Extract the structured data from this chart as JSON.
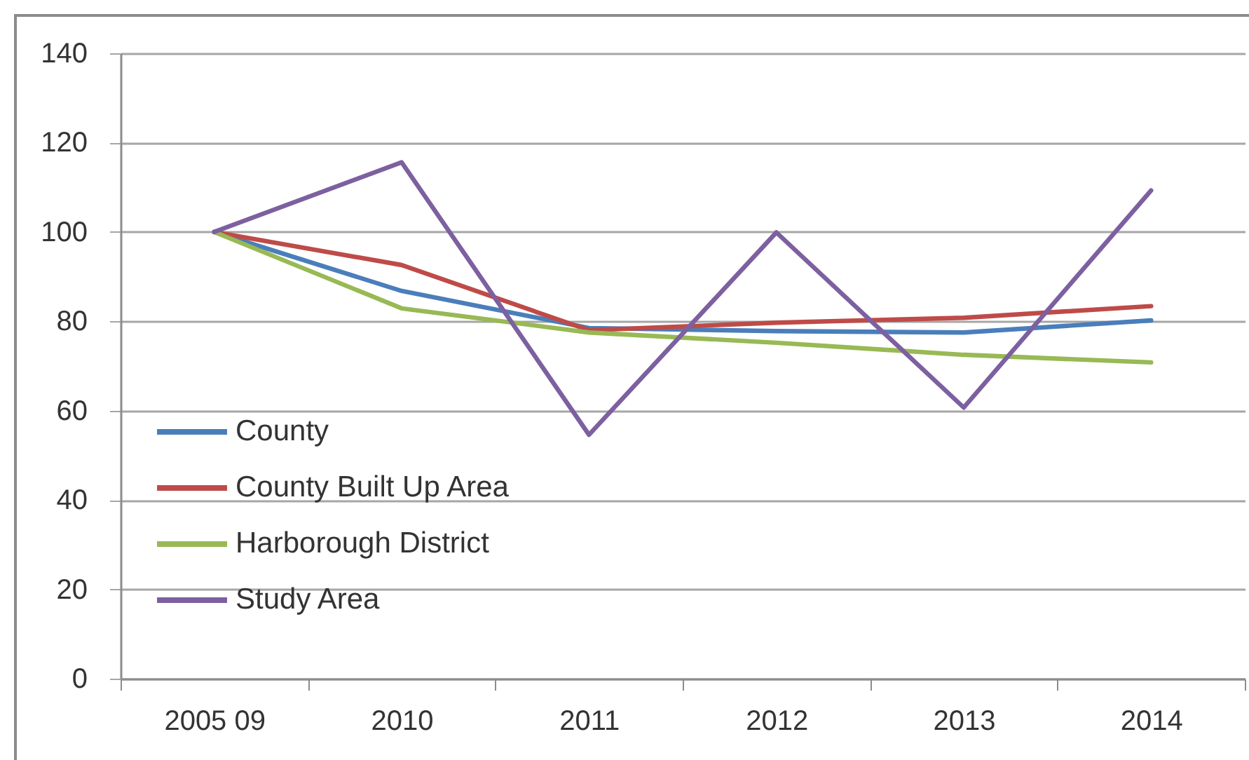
{
  "chart_data": {
    "type": "line",
    "categories": [
      "2005 09",
      "2010",
      "2011",
      "2012",
      "2013",
      "2014"
    ],
    "series": [
      {
        "name": "County",
        "color": "#4a7ebb",
        "values": [
          100,
          86.8,
          78.5,
          77.8,
          77.5,
          80.2
        ]
      },
      {
        "name": "County Built Up Area",
        "color": "#be4b48",
        "values": [
          100,
          92.6,
          78,
          79.7,
          80.8,
          83.4
        ]
      },
      {
        "name": "Harborough District",
        "color": "#98b954",
        "values": [
          100,
          82.9,
          77.5,
          75.2,
          72.5,
          70.8
        ]
      },
      {
        "name": "Study Area",
        "color": "#7d60a0",
        "values": [
          100,
          115.6,
          54.6,
          99.9,
          60.7,
          109.3
        ]
      }
    ],
    "ylim": [
      0,
      140
    ],
    "yticks": [
      0,
      20,
      40,
      60,
      80,
      100,
      120,
      140
    ],
    "grid": "y",
    "legend": "bottom left",
    "line_style": "solid"
  }
}
